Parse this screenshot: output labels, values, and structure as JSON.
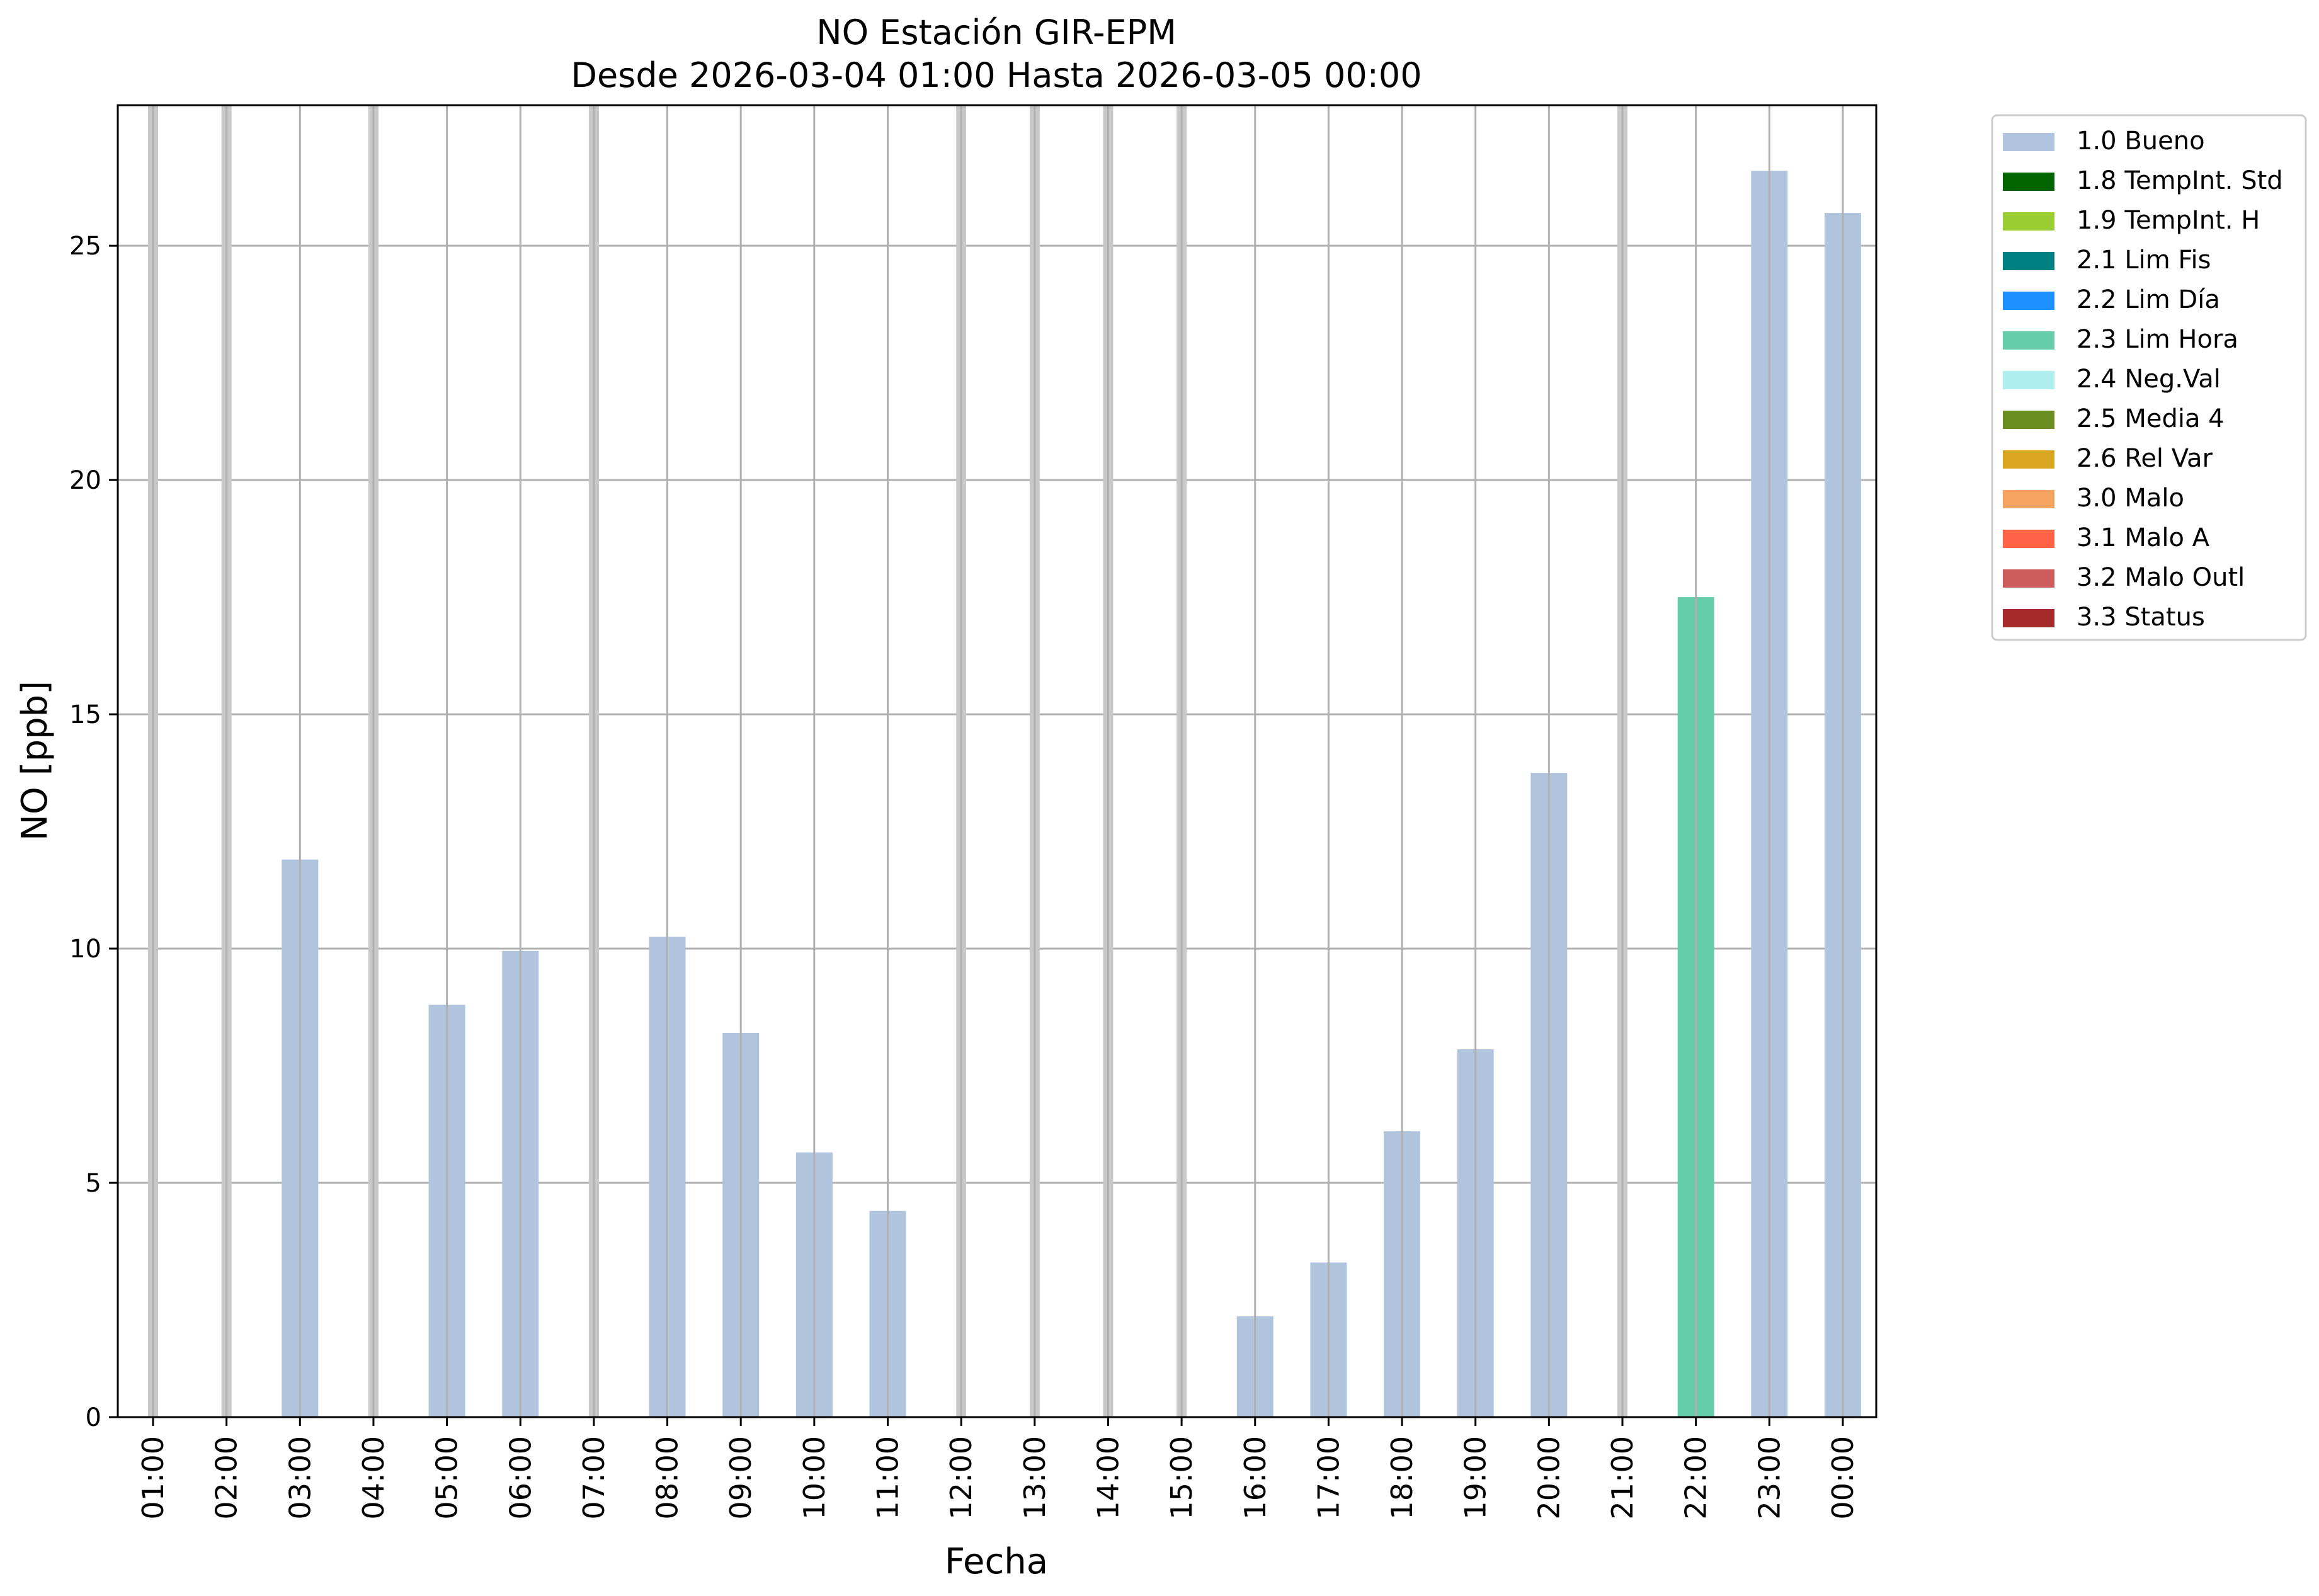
{
  "chart_data": {
    "type": "bar",
    "title": "NO Estación GIR-EPM",
    "subtitle": "Desde 2026-03-04 01:00 Hasta 2026-03-05 00:00",
    "xlabel": "Fecha",
    "ylabel": "NO [ppb]",
    "ylim": [
      0,
      28
    ],
    "yticks": [
      0,
      5,
      10,
      15,
      20,
      25
    ],
    "grid": true,
    "legend_position": "outside-top-right",
    "categories": [
      "01:00",
      "02:00",
      "03:00",
      "04:00",
      "05:00",
      "06:00",
      "07:00",
      "08:00",
      "09:00",
      "10:00",
      "11:00",
      "12:00",
      "13:00",
      "14:00",
      "15:00",
      "16:00",
      "17:00",
      "18:00",
      "19:00",
      "20:00",
      "21:00",
      "22:00",
      "23:00",
      "00:00"
    ],
    "values": [
      null,
      null,
      11.9,
      null,
      8.8,
      9.95,
      null,
      10.25,
      8.2,
      5.65,
      4.4,
      null,
      null,
      null,
      null,
      2.15,
      3.3,
      6.1,
      7.85,
      13.75,
      null,
      17.5,
      26.6,
      25.7
    ],
    "flags": [
      "",
      "",
      "1.0 Bueno",
      "",
      "1.0 Bueno",
      "1.0 Bueno",
      "",
      "1.0 Bueno",
      "1.0 Bueno",
      "1.0 Bueno",
      "1.0 Bueno",
      "",
      "",
      "",
      "",
      "1.0 Bueno",
      "1.0 Bueno",
      "1.0 Bueno",
      "1.0 Bueno",
      "1.0 Bueno",
      "",
      "2.3 Lim Hora",
      "1.0 Bueno",
      "1.0 Bueno"
    ],
    "missing_marker_color": "#c8c8c8",
    "legend": [
      {
        "label": "1.0 Bueno",
        "color": "#b0c4de"
      },
      {
        "label": "1.8 TempInt. Std",
        "color": "#006400"
      },
      {
        "label": "1.9 TempInt. H",
        "color": "#9acd32"
      },
      {
        "label": "2.1 Lim Fis",
        "color": "#008080"
      },
      {
        "label": "2.2 Lim Día",
        "color": "#1e90ff"
      },
      {
        "label": "2.3 Lim Hora",
        "color": "#66cdaa"
      },
      {
        "label": "2.4 Neg.Val",
        "color": "#afeeee"
      },
      {
        "label": "2.5 Media 4",
        "color": "#6b8e23"
      },
      {
        "label": "2.6 Rel Var",
        "color": "#daa520"
      },
      {
        "label": "3.0 Malo",
        "color": "#f4a460"
      },
      {
        "label": "3.1 Malo A",
        "color": "#ff6347"
      },
      {
        "label": "3.2 Malo Outl",
        "color": "#cd5c5c"
      },
      {
        "label": "3.3 Status",
        "color": "#a52a2a"
      }
    ]
  }
}
